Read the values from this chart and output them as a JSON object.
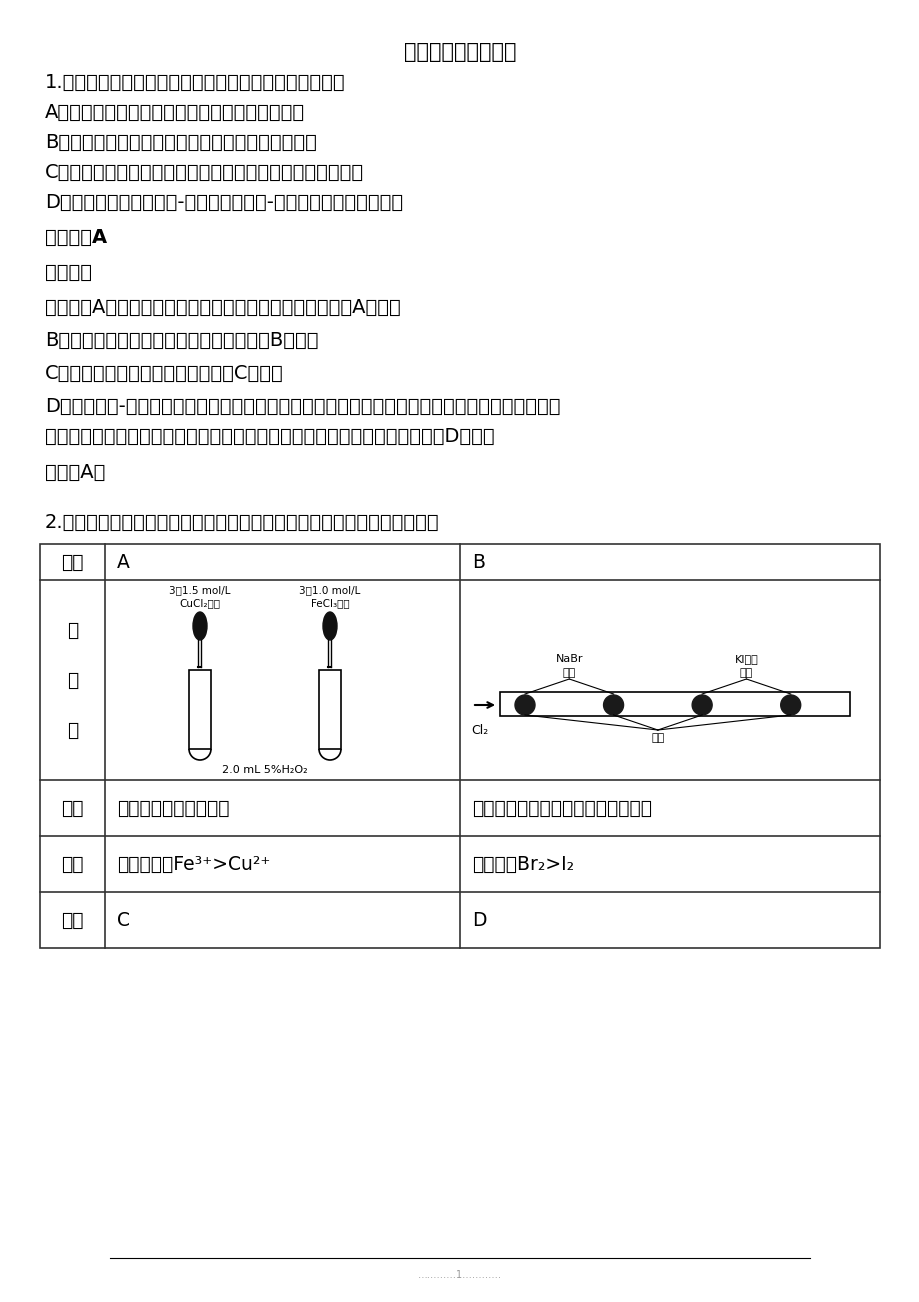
{
  "bg_color": "#ffffff",
  "title": "哈尔滨六中化学试题",
  "q1": "1.化学与科技、社会、生产密切相关，下列说法错误的是",
  "q1_A": "A．我国出土的青铜礼器司母戊鼎是铜和铁的合金",
  "q1_B": "B．高纯硅具有良好的半导体性能，可用于制光电池",
  "q1_C": "C．港珠澳大桥钢筋表面的环氧树脂涂层属于合成高分子材料",
  "q1_D": "D．火箭推进剂使用煤油-液氧比偏二甲肼-四氧化二氮的环境污染小",
  "ans_label": "【答案】A",
  "jiexi_label": "【解析】",
  "xiangxi_label": "【详解】A．司母戊鼎的主要成分是青铜，是铜锡合金，故A错误；",
  "detail_B": "B．硅是半导体材料，可用于制光电池，故B正确；",
  "detail_C": "C．环氧树脂属于高分子化合物，故C正确；",
  "detail_D1": "D．偏二甲肼-四氧化二氮作燃料，会产生二氧化氮等污染物，发射神舟十一号飞船所用火箭的燃料",
  "detail_D2": "是液氧和煤油，产物为二氧化碳和水，燃料毒性小、污染少，有利于环保，故D正确；",
  "ans_select": "答案选A。",
  "q2": "2.控制变量是科学研究重要方法。由下列实验现象一定能得出相应结论的是",
  "cell_A_xianxiang": "右边试管产生气泡较快",
  "cell_B_xianxiang": "左边棉球变棕黄色，右边棉球变蓝色",
  "cell_A_jielun": "催化活性：Fe³⁺>Cu²⁺",
  "cell_B_jielun": "氧化性：Br₂>I₂",
  "img_A_label1a": "3滴1.5 mol/L",
  "img_A_label1b": "CuCl₂溶液",
  "img_A_label2a": "3滴1.0 mol/L",
  "img_A_label2b": "FeCl₃溶液",
  "img_A_bottom": "2.0 mL 5%H₂O₂",
  "footer_line": true,
  "page_num": "1"
}
